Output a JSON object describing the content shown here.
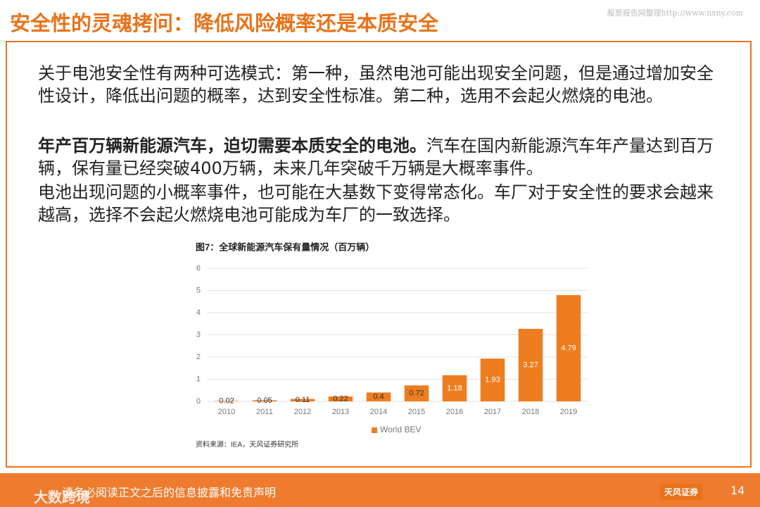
{
  "title": "安全性的灵魂拷问：降低风险概率还是本质安全",
  "watermark": "股票报告网整理http://www.nxny.com",
  "paragraphs": [
    {
      "text": "关于电池安全性有两种可选模式：第一种，虽然电池可能出现安全问题，但是通过增加安全性设计，降低出问题的概率，达到安全性标准。第二种，选用不会起火燃烧的电池。"
    },
    {
      "bold": "年产百万辆新能源汽车，迫切需要本质安全的电池。",
      "text": "汽车在国内新能源汽车年产量达到百万辆，保有量已经突破400万辆，未来几年突破千万辆是大概率事件。"
    },
    {
      "text": "电池出现问题的小概率事件，也可能在大基数下变得常态化。车厂对于安全性的要求会越来越高，选择不会起火燃烧电池可能成为车厂的一致选择。"
    }
  ],
  "chart_data": {
    "type": "bar",
    "title": "图7：全球新能源汽车保有量情况（百万辆）",
    "categories": [
      "2010",
      "2011",
      "2012",
      "2013",
      "2014",
      "2015",
      "2016",
      "2017",
      "2018",
      "2019"
    ],
    "series": [
      {
        "name": "World BEV",
        "color": "#ed7d1f",
        "values": [
          0.02,
          0.05,
          0.11,
          0.22,
          0.4,
          0.72,
          1.18,
          1.93,
          3.27,
          4.79
        ]
      }
    ],
    "ylim": [
      0,
      6
    ],
    "yticks": [
      0,
      1,
      2,
      3,
      4,
      5,
      6
    ],
    "grid": true,
    "legend": "bottom",
    "source": "资料来源：IEA，天风证券研究所"
  },
  "footer": {
    "disclaimer": "请务必阅读正文之后的信息披露和免责声明",
    "logo": "天风证券",
    "page": "14",
    "overlay": "大数跨境"
  }
}
